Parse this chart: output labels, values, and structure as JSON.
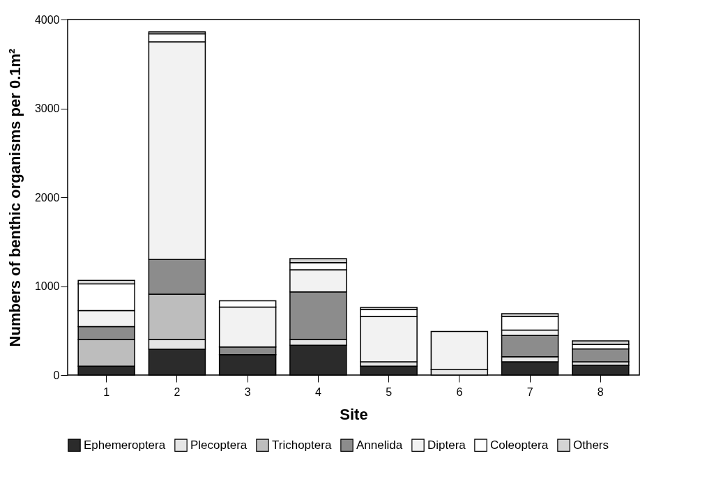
{
  "chart_data": {
    "type": "bar",
    "stacked": true,
    "xlabel": "Site",
    "ylabel": "Numbers of benthic organisms per 0.1m²",
    "categories": [
      "1",
      "2",
      "3",
      "4",
      "5",
      "6",
      "7",
      "8"
    ],
    "ylim": [
      0,
      4000
    ],
    "yticks": [
      0,
      1000,
      2000,
      3000,
      4000
    ],
    "grid": false,
    "legend": "bottom",
    "series": [
      {
        "name": "Ephemeroptera",
        "color": "#2b2b2b",
        "values": [
          100,
          290,
          230,
          335,
          100,
          0,
          150,
          110
        ]
      },
      {
        "name": "Plecoptera",
        "color": "#e6e6e6",
        "values": [
          0,
          110,
          0,
          65,
          50,
          60,
          55,
          40
        ]
      },
      {
        "name": "Trichoptera",
        "color": "#bdbdbd",
        "values": [
          300,
          510,
          0,
          0,
          0,
          0,
          0,
          0
        ]
      },
      {
        "name": "Annelida",
        "color": "#8c8c8c",
        "values": [
          145,
          390,
          85,
          535,
          0,
          0,
          240,
          145
        ]
      },
      {
        "name": "Diptera",
        "color": "#f2f2f2",
        "values": [
          180,
          2450,
          450,
          250,
          510,
          430,
          60,
          null
        ]
      },
      {
        "name": "Coleoptera",
        "color": "#ffffff",
        "values": [
          300,
          90,
          70,
          80,
          80,
          0,
          155,
          50
        ]
      },
      {
        "name": "Others",
        "color": "#d4d4d4",
        "values": [
          40,
          20,
          0,
          45,
          20,
          0,
          30,
          40
        ]
      }
    ]
  }
}
